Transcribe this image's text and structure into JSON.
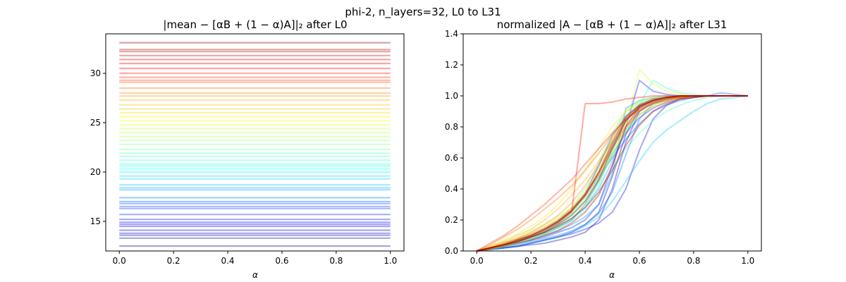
{
  "figure": {
    "suptitle": "phi-2, n_layers=32, L0 to L31"
  },
  "chart_data": [
    {
      "type": "line",
      "title": "|mean − [αB + (1 − α)A]|₂ after L0",
      "xlabel": "α",
      "ylabel": "",
      "xlim": [
        -0.05,
        1.05
      ],
      "ylim": [
        12.0,
        34.0
      ],
      "xticks": [
        0.0,
        0.2,
        0.4,
        0.6,
        0.8,
        1.0
      ],
      "xtick_labels": [
        "0.0",
        "0.2",
        "0.4",
        "0.6",
        "0.8",
        "1.0"
      ],
      "yticks": [
        15,
        20,
        25,
        30
      ],
      "ytick_labels": [
        "15",
        "20",
        "25",
        "30"
      ],
      "x_range": [
        0.0,
        1.0
      ],
      "colormap": "jet",
      "line_alpha": 0.35,
      "series_note": "one horizontal line per token pair, colored by value",
      "levels": [
        12.5,
        13.3,
        13.6,
        13.8,
        14.1,
        14.5,
        14.7,
        14.9,
        15.2,
        15.7,
        16.3,
        16.5,
        16.8,
        17.0,
        17.4,
        18.2,
        18.4,
        18.7,
        19.3,
        19.6,
        20.0,
        20.3,
        20.6,
        20.8,
        21.2,
        21.6,
        21.9,
        22.3,
        22.8,
        23.2,
        23.6,
        24.0,
        24.4,
        24.8,
        25.2,
        25.6,
        26.0,
        26.4,
        26.8,
        27.3,
        27.7,
        28.0,
        28.5,
        29.1,
        29.3,
        29.6,
        30.0,
        30.5,
        31.0,
        31.4,
        31.8,
        32.2,
        32.4,
        33.1
      ]
    },
    {
      "type": "line",
      "title": "normalized |A − [αB + (1 − α)A]|₂ after L31",
      "xlabel": "α",
      "ylabel": "",
      "xlim": [
        -0.05,
        1.05
      ],
      "ylim": [
        0.0,
        1.4
      ],
      "xticks": [
        0.0,
        0.2,
        0.4,
        0.6,
        0.8,
        1.0
      ],
      "xtick_labels": [
        "0.0",
        "0.2",
        "0.4",
        "0.6",
        "0.8",
        "1.0"
      ],
      "yticks": [
        0.0,
        0.2,
        0.4,
        0.6,
        0.8,
        1.0,
        1.2,
        1.4
      ],
      "ytick_labels": [
        "0.0",
        "0.2",
        "0.4",
        "0.6",
        "0.8",
        "1.0",
        "1.2",
        "1.4"
      ],
      "x": [
        0.0,
        0.05,
        0.1,
        0.15,
        0.2,
        0.25,
        0.3,
        0.35,
        0.4,
        0.45,
        0.5,
        0.55,
        0.6,
        0.65,
        0.7,
        0.75,
        0.8,
        0.85,
        0.9,
        0.95,
        1.0
      ],
      "colormap": "jet",
      "line_alpha": 0.35,
      "series_note": "many sigmoid-like curves from (0,0) to (1,1), transition near α≈0.4–0.6",
      "series": [
        {
          "name": "s01",
          "c": 0.02,
          "values": [
            0.0,
            0.01,
            0.02,
            0.03,
            0.05,
            0.07,
            0.09,
            0.12,
            0.17,
            0.25,
            0.48,
            0.75,
            0.92,
            0.97,
            0.99,
            0.99,
            1.0,
            1.0,
            1.0,
            1.0,
            1.0
          ]
        },
        {
          "name": "s02",
          "c": 0.05,
          "values": [
            0.0,
            0.01,
            0.02,
            0.03,
            0.04,
            0.05,
            0.07,
            0.09,
            0.12,
            0.2,
            0.4,
            0.7,
            0.9,
            0.96,
            0.98,
            0.99,
            1.0,
            1.0,
            1.0,
            1.0,
            1.0
          ]
        },
        {
          "name": "s03",
          "c": 0.08,
          "values": [
            0.0,
            0.02,
            0.04,
            0.07,
            0.1,
            0.14,
            0.19,
            0.26,
            0.37,
            0.55,
            0.74,
            0.87,
            0.94,
            0.97,
            0.99,
            1.0,
            1.0,
            1.0,
            1.0,
            1.0,
            1.0
          ]
        },
        {
          "name": "s04",
          "c": 0.11,
          "values": [
            0.0,
            0.01,
            0.02,
            0.03,
            0.05,
            0.07,
            0.09,
            0.11,
            0.14,
            0.18,
            0.25,
            0.4,
            0.65,
            0.85,
            0.94,
            0.98,
            0.99,
            1.0,
            1.0,
            1.0,
            1.0
          ]
        },
        {
          "name": "s05",
          "c": 0.14,
          "values": [
            0.0,
            0.01,
            0.03,
            0.05,
            0.07,
            0.09,
            0.12,
            0.15,
            0.2,
            0.3,
            0.55,
            0.8,
            1.1,
            1.03,
            1.01,
            1.0,
            1.0,
            1.0,
            1.0,
            1.0,
            1.0
          ]
        },
        {
          "name": "s06",
          "c": 0.17,
          "values": [
            0.0,
            0.02,
            0.04,
            0.06,
            0.08,
            0.11,
            0.15,
            0.2,
            0.3,
            0.45,
            0.62,
            0.76,
            0.86,
            0.92,
            0.96,
            0.98,
            0.99,
            1.0,
            1.0,
            1.0,
            1.0
          ]
        },
        {
          "name": "s07",
          "c": 0.2,
          "values": [
            0.0,
            0.02,
            0.04,
            0.06,
            0.09,
            0.13,
            0.18,
            0.25,
            0.35,
            0.48,
            0.6,
            0.72,
            0.82,
            0.9,
            0.94,
            0.97,
            0.99,
            1.0,
            1.02,
            1.01,
            1.0
          ]
        },
        {
          "name": "s08",
          "c": 0.23,
          "values": [
            0.0,
            0.01,
            0.02,
            0.04,
            0.06,
            0.08,
            0.1,
            0.13,
            0.17,
            0.24,
            0.38,
            0.62,
            0.85,
            0.95,
            0.98,
            0.99,
            1.0,
            1.0,
            1.0,
            1.0,
            1.0
          ]
        },
        {
          "name": "s09",
          "c": 0.26,
          "values": [
            0.0,
            0.01,
            0.03,
            0.05,
            0.07,
            0.1,
            0.13,
            0.17,
            0.22,
            0.3,
            0.5,
            0.92,
            0.97,
            0.99,
            1.0,
            1.0,
            1.0,
            1.0,
            1.0,
            1.0,
            1.0
          ]
        },
        {
          "name": "s10",
          "c": 0.29,
          "values": [
            0.0,
            0.02,
            0.04,
            0.06,
            0.09,
            0.12,
            0.16,
            0.21,
            0.28,
            0.4,
            0.58,
            0.78,
            0.9,
            0.96,
            0.98,
            0.99,
            1.0,
            1.0,
            1.0,
            1.0,
            1.0
          ]
        },
        {
          "name": "s11",
          "c": 0.32,
          "values": [
            0.0,
            0.01,
            0.02,
            0.03,
            0.05,
            0.07,
            0.09,
            0.12,
            0.16,
            0.22,
            0.32,
            0.45,
            0.58,
            0.7,
            0.78,
            0.84,
            0.9,
            0.95,
            0.98,
            0.99,
            1.0
          ]
        },
        {
          "name": "s12",
          "c": 0.35,
          "values": [
            0.0,
            0.02,
            0.04,
            0.07,
            0.1,
            0.14,
            0.19,
            0.26,
            0.36,
            0.5,
            0.68,
            0.84,
            0.93,
            0.97,
            0.99,
            1.0,
            1.0,
            1.0,
            1.0,
            1.0,
            1.0
          ]
        },
        {
          "name": "s13",
          "c": 0.38,
          "values": [
            0.0,
            0.01,
            0.03,
            0.05,
            0.08,
            0.11,
            0.15,
            0.2,
            0.28,
            0.42,
            0.64,
            0.86,
            0.95,
            0.98,
            0.99,
            1.0,
            1.0,
            1.0,
            1.0,
            1.0,
            1.0
          ]
        },
        {
          "name": "s14",
          "c": 0.41,
          "values": [
            0.0,
            0.02,
            0.04,
            0.06,
            0.09,
            0.12,
            0.17,
            0.23,
            0.32,
            0.46,
            0.66,
            0.84,
            0.94,
            1.1,
            1.05,
            1.02,
            1.01,
            1.0,
            1.0,
            1.0,
            1.0
          ]
        },
        {
          "name": "s15",
          "c": 0.44,
          "values": [
            0.0,
            0.01,
            0.03,
            0.05,
            0.07,
            0.1,
            0.14,
            0.19,
            0.26,
            0.37,
            0.52,
            0.66,
            0.76,
            0.84,
            0.9,
            0.94,
            0.97,
            0.99,
            1.0,
            1.0,
            1.0
          ]
        },
        {
          "name": "s16",
          "c": 0.47,
          "values": [
            0.0,
            0.02,
            0.04,
            0.07,
            0.1,
            0.14,
            0.2,
            0.28,
            0.4,
            0.57,
            0.76,
            0.9,
            0.96,
            0.98,
            0.99,
            1.0,
            1.0,
            1.0,
            1.0,
            1.0,
            1.0
          ]
        },
        {
          "name": "s17",
          "c": 0.5,
          "values": [
            0.0,
            0.02,
            0.04,
            0.06,
            0.09,
            0.13,
            0.18,
            0.24,
            0.33,
            0.46,
            0.62,
            0.77,
            0.88,
            0.94,
            0.97,
            0.99,
            1.0,
            1.0,
            1.0,
            1.0,
            1.0
          ]
        },
        {
          "name": "s18",
          "c": 0.53,
          "values": [
            0.0,
            0.03,
            0.06,
            0.09,
            0.13,
            0.17,
            0.22,
            0.28,
            0.36,
            0.48,
            0.63,
            0.78,
            0.88,
            0.94,
            0.97,
            0.99,
            1.0,
            1.0,
            1.0,
            1.0,
            1.0
          ]
        },
        {
          "name": "s19",
          "c": 0.56,
          "values": [
            0.0,
            0.02,
            0.04,
            0.06,
            0.09,
            0.13,
            0.18,
            0.25,
            0.35,
            0.52,
            0.74,
            0.9,
            0.97,
            0.99,
            1.0,
            1.0,
            1.0,
            1.0,
            1.0,
            1.0,
            1.0
          ]
        },
        {
          "name": "s20",
          "c": 0.59,
          "values": [
            0.0,
            0.01,
            0.03,
            0.05,
            0.08,
            0.11,
            0.15,
            0.21,
            0.3,
            0.44,
            0.62,
            0.8,
            1.17,
            1.08,
            1.03,
            1.01,
            1.0,
            1.0,
            1.0,
            1.0,
            1.0
          ]
        },
        {
          "name": "s21",
          "c": 0.62,
          "values": [
            0.0,
            0.02,
            0.05,
            0.08,
            0.12,
            0.16,
            0.21,
            0.28,
            0.38,
            0.52,
            0.7,
            0.85,
            0.93,
            0.97,
            0.99,
            1.0,
            1.0,
            1.0,
            1.0,
            1.0,
            1.0
          ]
        },
        {
          "name": "s22",
          "c": 0.65,
          "values": [
            0.0,
            0.03,
            0.07,
            0.11,
            0.16,
            0.22,
            0.3,
            0.4,
            0.52,
            0.66,
            0.8,
            0.9,
            0.95,
            0.98,
            0.99,
            1.0,
            1.0,
            1.0,
            1.0,
            1.0,
            1.0
          ]
        },
        {
          "name": "s23",
          "c": 0.68,
          "values": [
            0.0,
            0.02,
            0.04,
            0.07,
            0.1,
            0.14,
            0.19,
            0.26,
            0.36,
            0.5,
            0.67,
            0.82,
            0.91,
            0.96,
            0.98,
            0.99,
            1.0,
            1.0,
            1.0,
            1.0,
            1.0
          ]
        },
        {
          "name": "s24",
          "c": 0.71,
          "values": [
            0.0,
            0.03,
            0.06,
            0.1,
            0.14,
            0.2,
            0.27,
            0.36,
            0.46,
            0.58,
            0.7,
            0.8,
            0.88,
            0.93,
            0.96,
            0.98,
            0.99,
            1.0,
            1.0,
            1.0,
            1.0
          ]
        },
        {
          "name": "s25",
          "c": 0.74,
          "values": [
            0.0,
            0.02,
            0.05,
            0.08,
            0.12,
            0.17,
            0.23,
            0.31,
            0.42,
            0.56,
            0.72,
            0.86,
            0.94,
            0.97,
            0.99,
            1.0,
            1.0,
            1.0,
            1.0,
            1.0,
            1.0
          ]
        },
        {
          "name": "s26",
          "c": 0.77,
          "values": [
            0.0,
            0.04,
            0.09,
            0.14,
            0.2,
            0.27,
            0.34,
            0.42,
            0.52,
            0.63,
            0.75,
            0.85,
            0.92,
            0.96,
            0.98,
            0.99,
            1.0,
            1.0,
            1.0,
            1.0,
            1.0
          ]
        },
        {
          "name": "s27",
          "c": 0.8,
          "values": [
            0.0,
            0.02,
            0.05,
            0.08,
            0.11,
            0.15,
            0.2,
            0.27,
            0.37,
            0.5,
            0.66,
            0.8,
            0.9,
            0.95,
            0.98,
            0.99,
            1.0,
            1.0,
            1.0,
            1.0,
            1.0
          ]
        },
        {
          "name": "s28",
          "c": 0.83,
          "values": [
            0.0,
            0.05,
            0.1,
            0.16,
            0.23,
            0.3,
            0.38,
            0.46,
            0.56,
            0.66,
            0.76,
            0.85,
            0.91,
            0.95,
            0.97,
            0.99,
            1.0,
            1.0,
            1.0,
            1.0,
            1.0
          ]
        },
        {
          "name": "s29",
          "c": 0.86,
          "values": [
            0.0,
            0.02,
            0.04,
            0.06,
            0.09,
            0.13,
            0.18,
            0.25,
            0.95,
            0.95,
            0.96,
            0.98,
            0.99,
            1.0,
            1.0,
            1.0,
            1.0,
            1.0,
            1.0,
            1.0,
            1.0
          ]
        },
        {
          "name": "s30",
          "c": 0.89,
          "values": [
            0.0,
            0.02,
            0.04,
            0.07,
            0.1,
            0.14,
            0.19,
            0.26,
            0.36,
            0.5,
            0.68,
            0.84,
            0.93,
            0.97,
            0.99,
            1.0,
            1.0,
            1.0,
            1.0,
            1.0,
            1.0
          ]
        },
        {
          "name": "s31",
          "c": 0.92,
          "values": [
            0.0,
            0.01,
            0.03,
            0.05,
            0.07,
            0.1,
            0.13,
            0.18,
            0.25,
            0.36,
            0.55,
            0.8,
            0.93,
            0.97,
            0.99,
            1.0,
            1.0,
            1.0,
            1.0,
            1.0,
            1.0
          ]
        },
        {
          "name": "s32",
          "c": 0.95,
          "values": [
            0.0,
            0.02,
            0.04,
            0.06,
            0.09,
            0.12,
            0.16,
            0.21,
            0.28,
            0.38,
            0.52,
            0.68,
            0.81,
            0.9,
            0.95,
            0.98,
            0.99,
            1.0,
            1.0,
            1.0,
            1.0
          ]
        },
        {
          "name": "s33",
          "c": 0.97,
          "values": [
            0.0,
            0.02,
            0.04,
            0.07,
            0.1,
            0.14,
            0.19,
            0.26,
            0.36,
            0.51,
            0.7,
            0.86,
            0.94,
            0.98,
            0.99,
            1.0,
            1.0,
            1.0,
            1.0,
            1.0,
            1.0
          ]
        },
        {
          "name": "s34",
          "c": 0.99,
          "values": [
            0.0,
            0.02,
            0.04,
            0.06,
            0.09,
            0.12,
            0.17,
            0.23,
            0.32,
            0.46,
            0.66,
            0.84,
            0.93,
            0.97,
            0.99,
            1.0,
            1.0,
            1.0,
            1.0,
            1.0,
            1.0
          ]
        }
      ]
    }
  ]
}
